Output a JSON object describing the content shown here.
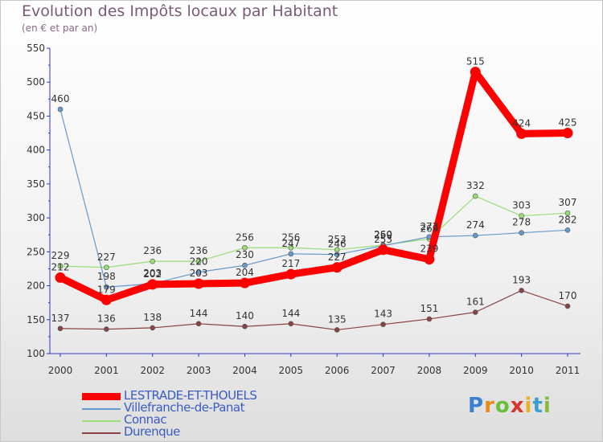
{
  "title": "Evolution des Impôts locaux par Habitant",
  "subtitle": "(en € et par an)",
  "logo": "Proxiti",
  "chart_data": {
    "type": "line",
    "title": "Evolution des Impôts locaux par Habitant",
    "subtitle": "(en € et par an)",
    "x": [
      "2000",
      "2001",
      "2002",
      "2003",
      "2004",
      "2005",
      "2006",
      "2007",
      "2008",
      "2009",
      "2010",
      "2011"
    ],
    "ylim": [
      100,
      550
    ],
    "yticks": [
      100,
      150,
      200,
      250,
      300,
      350,
      400,
      450,
      500,
      550
    ],
    "grid": false,
    "legend_placement": "bottom-left",
    "series": [
      {
        "name": "LESTRADE-ET-THOUELS",
        "color": "#ff0000",
        "values": [
          212,
          179,
          202,
          203,
          204,
          217,
          227,
          253,
          239,
          515,
          424,
          425
        ],
        "labels": [
          "212",
          "179",
          "202",
          "203",
          "204",
          "217",
          "227",
          "253",
          "239",
          "515",
          "424",
          "425"
        ],
        "width": 9
      },
      {
        "name": "Villefranche-de-Panat",
        "color": "#6699cc",
        "values": [
          460,
          198,
          203,
          220,
          230,
          247,
          246,
          259,
          272,
          274,
          278,
          282
        ],
        "labels": [
          "460",
          "198",
          "203",
          "220",
          "230",
          "247",
          "246",
          "259",
          "272",
          "274",
          "278",
          "282"
        ],
        "width": 1.2
      },
      {
        "name": "Connac",
        "color": "#99dd77",
        "values": [
          229,
          227,
          236,
          236,
          256,
          256,
          253,
          260,
          269,
          332,
          303,
          307
        ],
        "labels": [
          "229",
          "227",
          "236",
          "236",
          "256",
          "256",
          "253",
          "260",
          "269",
          "332",
          "303",
          "307"
        ],
        "width": 1.2
      },
      {
        "name": "Durenque",
        "color": "#884444",
        "values": [
          137,
          136,
          138,
          144,
          140,
          144,
          135,
          143,
          151,
          161,
          193,
          170
        ],
        "labels": [
          "137",
          "136",
          "138",
          "144",
          "140",
          "144",
          "135",
          "143",
          "151",
          "161",
          "193",
          "170"
        ],
        "width": 1.2
      }
    ]
  },
  "colors": {
    "axis": "#3333cc",
    "tick_text": "#333333",
    "label_text": "#333333"
  }
}
